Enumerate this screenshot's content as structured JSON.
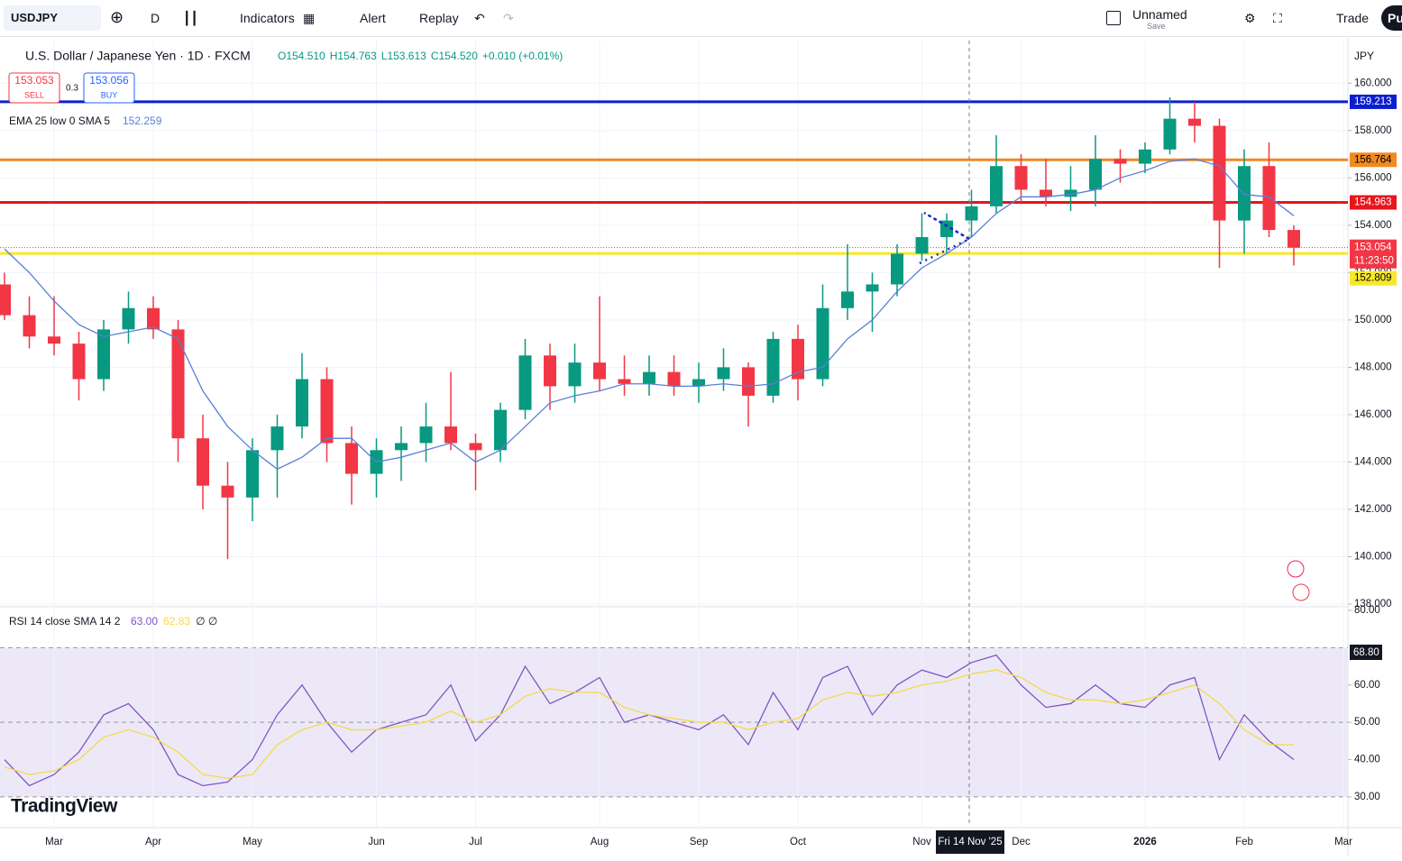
{
  "toolbar": {
    "symbol": "USDJPY",
    "interval": "D",
    "indicators": "Indicators",
    "alert": "Alert",
    "replay": "Replay",
    "layout": "Unnamed",
    "save": "Save",
    "trade": "Trade",
    "publish": "Pu"
  },
  "currency": "JPY",
  "crosshair_label": "Fri 14 Nov '25",
  "watermark": "TradingView",
  "chart_data": [
    {
      "type": "candlestick",
      "title": "U.S. Dollar / Japanese Yen · 1D · FXCM",
      "legend_values": [
        "O154.510",
        "H154.763",
        "L153.613",
        "C154.520",
        "+0.010 (+0.01%)"
      ],
      "sell": {
        "price": 153.053,
        "label": "SELL"
      },
      "spread": 0.3,
      "buy": {
        "price": 153.056,
        "label": "BUY"
      },
      "indicator": {
        "name": "EMA 25 low 0 SMA 5",
        "value": 152.259,
        "color": "#5b7fd6"
      },
      "up_color": "#089981",
      "down_color": "#f23645",
      "categories": [
        null,
        null,
        "Mar",
        null,
        null,
        null,
        "Apr",
        null,
        null,
        null,
        "May",
        null,
        null,
        null,
        null,
        "Jun",
        null,
        null,
        null,
        "Jul",
        null,
        null,
        null,
        null,
        "Aug",
        null,
        null,
        null,
        "Sep",
        null,
        null,
        null,
        "Oct",
        null,
        null,
        null,
        null,
        "Nov",
        null,
        null,
        null,
        "Dec",
        null,
        null,
        null,
        null,
        "2026",
        null,
        null,
        null,
        "Feb",
        null,
        null,
        null,
        "Mar"
      ],
      "open": [
        151.5,
        150.2,
        149.3,
        149,
        147.5,
        149.6,
        150.5,
        149.6,
        145,
        143,
        142.5,
        144.5,
        145.5,
        147.5,
        144.8,
        143.5,
        144.5,
        144.8,
        145.5,
        144.8,
        144.5,
        146.2,
        148.5,
        147.2,
        148.2,
        147.5,
        147.3,
        147.8,
        147.2,
        147.5,
        148,
        146.8,
        149.2,
        147.5,
        150.5,
        151.2,
        151.5,
        152.8,
        153.5,
        154.2,
        154.8,
        156.5,
        155.5,
        155.2,
        155.5,
        156.8,
        156.6,
        157.2,
        158.5,
        158.2,
        154.2,
        156.5,
        153.8,
        null,
        null
      ],
      "high": [
        152,
        151,
        151,
        149.5,
        150,
        151.2,
        151,
        150,
        146,
        144,
        145,
        146,
        148.6,
        148,
        145.5,
        145,
        145.5,
        146.5,
        147.8,
        145.2,
        146.5,
        149.2,
        149,
        149,
        151,
        148.5,
        148.5,
        148.5,
        148.2,
        148.8,
        148.2,
        149.5,
        149.8,
        151.5,
        153.2,
        152,
        153.2,
        154.5,
        154.5,
        155.5,
        157.8,
        157,
        156.8,
        156.5,
        157.8,
        157.2,
        157.5,
        159.4,
        159.2,
        158.5,
        157.2,
        157.5,
        154,
        null,
        null
      ],
      "low": [
        150,
        148.8,
        148.5,
        146.6,
        147,
        149,
        149.2,
        144,
        142,
        139.9,
        141.5,
        142.5,
        145,
        144,
        142.2,
        142.5,
        143.2,
        144,
        144.5,
        142.8,
        144,
        145.8,
        146.2,
        146.5,
        147,
        146.8,
        146.8,
        146.8,
        146.5,
        147,
        145.5,
        146.5,
        146.6,
        147.2,
        150,
        149.5,
        151,
        152.5,
        152.8,
        153.5,
        154.5,
        155,
        154.8,
        154.6,
        154.8,
        155.8,
        156.2,
        157,
        157.5,
        152.2,
        152.8,
        153.5,
        152.3,
        null,
        null
      ],
      "close": [
        150.2,
        149.3,
        149,
        147.5,
        149.6,
        150.5,
        149.6,
        145,
        143,
        142.5,
        144.5,
        145.5,
        147.5,
        144.8,
        143.5,
        144.5,
        144.8,
        145.5,
        144.8,
        144.5,
        146.2,
        148.5,
        147.2,
        148.2,
        147.5,
        147.3,
        147.8,
        147.2,
        147.5,
        148,
        146.8,
        149.2,
        147.5,
        150.5,
        151.2,
        151.5,
        152.8,
        153.5,
        154.2,
        154.8,
        156.5,
        155.5,
        155.2,
        155.5,
        156.8,
        156.6,
        157.2,
        158.5,
        158.2,
        154.2,
        156.5,
        153.8,
        153.05,
        null,
        null
      ],
      "ma_values": [
        153,
        152,
        150.8,
        149.8,
        149.3,
        149.5,
        149.7,
        149.2,
        147,
        145.5,
        144.5,
        143.7,
        144.2,
        145,
        145,
        144,
        144.2,
        144.5,
        144.8,
        144,
        144.5,
        145.5,
        146.5,
        146.8,
        147,
        147.3,
        147.3,
        147.2,
        147.2,
        147.3,
        147.2,
        147.3,
        147.8,
        148,
        149.2,
        150,
        151.2,
        152.2,
        152.8,
        153.5,
        154.5,
        155.2,
        155.2,
        155.3,
        155.5,
        156,
        156.3,
        156.7,
        156.8,
        156.5,
        155.3,
        155.2,
        154.4,
        null,
        null
      ],
      "levels": [
        {
          "value": 159.213,
          "color": "#0c1fd0",
          "text_color": "#ffffff"
        },
        {
          "value": 156.764,
          "color": "#f08a24",
          "text_color": "#000000"
        },
        {
          "value": 154.963,
          "color": "#e8151b",
          "text_color": "#ffffff"
        },
        {
          "value": 152.809,
          "color": "#f7e82a",
          "text_color": "#000000"
        }
      ],
      "last_price": 153.054,
      "countdown": "11:23:50",
      "last_color": "#f23645",
      "ylim": [
        138,
        161.8
      ],
      "yticks": [
        {
          "value": 138,
          "label": "138.000"
        },
        {
          "value": 140,
          "label": "140.000"
        },
        {
          "value": 142,
          "label": "142.000"
        },
        {
          "value": 144,
          "label": "144.000"
        },
        {
          "value": 146,
          "label": "146.000"
        },
        {
          "value": 148,
          "label": "148.000"
        },
        {
          "value": 150,
          "label": "150.000"
        },
        {
          "value": 152,
          "label": "152.000"
        },
        {
          "value": 154,
          "label": "154.000"
        },
        {
          "value": 156,
          "label": "156.000"
        },
        {
          "value": 158,
          "label": "158.000"
        },
        {
          "value": 160,
          "label": "160.000"
        }
      ],
      "grid": true
    },
    {
      "type": "line",
      "title": "RSI 14 close SMA 14 2",
      "legend_values": [
        "63.00",
        "62.83",
        "∅ ∅"
      ],
      "marker_label": "68.80",
      "series": [
        {
          "color": "#7e57c2",
          "values": [
            40,
            33,
            36,
            42,
            52,
            55,
            48,
            36,
            33,
            34,
            40,
            52,
            60,
            50,
            42,
            48,
            50,
            52,
            60,
            45,
            52,
            65,
            55,
            58,
            62,
            50,
            52,
            50,
            48,
            52,
            44,
            58,
            48,
            62,
            65,
            52,
            60,
            64,
            62,
            66,
            68,
            60,
            54,
            55,
            60,
            55,
            54,
            60,
            62,
            40,
            52,
            45,
            40,
            null,
            null
          ]
        },
        {
          "color": "#f5d94a",
          "values": [
            38,
            36,
            37,
            40,
            46,
            48,
            46,
            42,
            36,
            35,
            36,
            44,
            48,
            50,
            48,
            48,
            49,
            50,
            53,
            50,
            52,
            57,
            59,
            58,
            58,
            54,
            52,
            51,
            50,
            50,
            48,
            50,
            51,
            56,
            58,
            57,
            58,
            60,
            61,
            63,
            64,
            62,
            58,
            56,
            56,
            55,
            56,
            58,
            60,
            55,
            48,
            44,
            44,
            null,
            null
          ]
        }
      ],
      "levels": [
        70,
        50,
        30
      ],
      "band_color": "#ede8f7",
      "ylim": [
        22,
        80
      ],
      "yticks": [
        {
          "value": 30,
          "label": "30.00"
        },
        {
          "value": 40,
          "label": "40.00"
        },
        {
          "value": 50,
          "label": "50.00"
        },
        {
          "value": 60,
          "label": "60.00"
        },
        {
          "value": 80,
          "label": "80.00"
        }
      ]
    }
  ]
}
